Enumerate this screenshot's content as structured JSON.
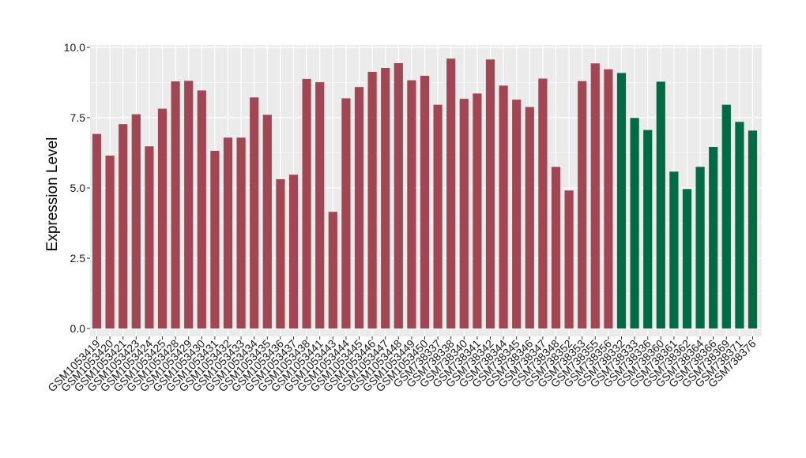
{
  "chart_data": {
    "type": "bar",
    "title": "",
    "xlabel": "",
    "ylabel": "Expression Level",
    "ylim": [
      0,
      10
    ],
    "yticks": [
      "0.0",
      "2.5",
      "5.0",
      "7.5",
      "10.0"
    ],
    "grid": true,
    "legend": "none",
    "colors": {
      "group1": "#A14652",
      "group2": "#006B45",
      "panel": "#EBEBEB",
      "grid": "#FFFFFF"
    },
    "categories": [
      "GSM1053419",
      "GSM1053420",
      "GSM1053421",
      "GSM1053423",
      "GSM1053424",
      "GSM1053425",
      "GSM1053428",
      "GSM1053429",
      "GSM1053430",
      "GSM1053431",
      "GSM1053432",
      "GSM1053433",
      "GSM1053434",
      "GSM1053435",
      "GSM1053436",
      "GSM1053437",
      "GSM1053438",
      "GSM1053441",
      "GSM1053443",
      "GSM1053444",
      "GSM1053445",
      "GSM1053446",
      "GSM1053447",
      "GSM1053448",
      "GSM1053449",
      "GSM1053450",
      "GSM738337",
      "GSM738338",
      "GSM738340",
      "GSM738341",
      "GSM738342",
      "GSM738344",
      "GSM738345",
      "GSM738346",
      "GSM738347",
      "GSM738348",
      "GSM738352",
      "GSM738353",
      "GSM738355",
      "GSM738356",
      "GSM738332",
      "GSM738333",
      "GSM738336",
      "GSM738360",
      "GSM738361",
      "GSM738362",
      "GSM738364",
      "GSM738366",
      "GSM738369",
      "GSM738371",
      "GSM738376"
    ],
    "values": [
      6.92,
      6.15,
      7.27,
      7.62,
      6.48,
      7.82,
      8.79,
      8.81,
      8.47,
      6.32,
      6.79,
      6.79,
      8.22,
      7.6,
      5.31,
      5.47,
      8.88,
      8.76,
      4.15,
      8.19,
      8.59,
      9.13,
      9.27,
      9.44,
      8.83,
      8.99,
      7.96,
      9.6,
      8.17,
      8.36,
      9.57,
      8.64,
      8.14,
      7.88,
      8.89,
      5.75,
      4.91,
      8.8,
      9.43,
      9.22,
      9.09,
      7.49,
      7.06,
      8.78,
      5.58,
      4.96,
      5.75,
      6.46,
      7.96,
      7.35,
      7.04
    ],
    "group1_count": 40
  }
}
